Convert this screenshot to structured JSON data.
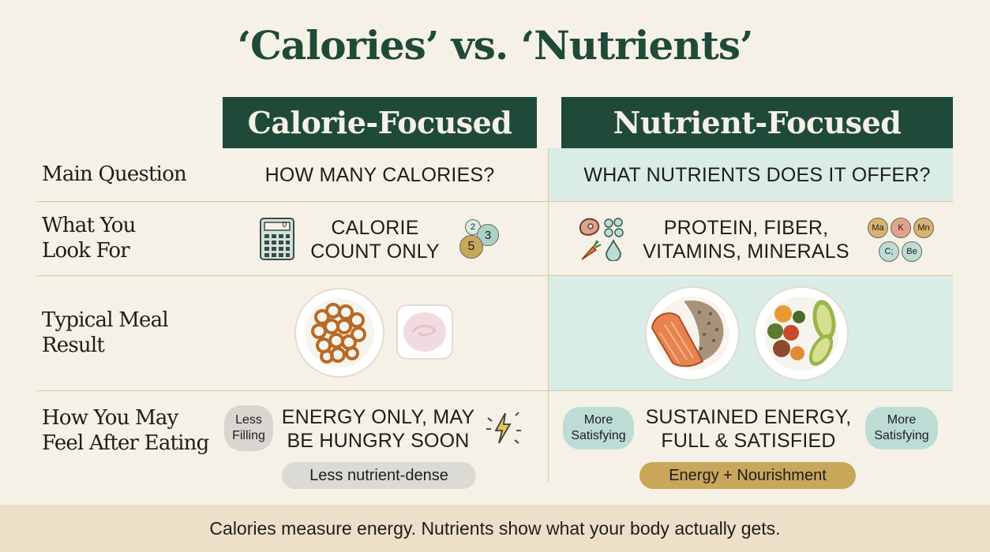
{
  "title": "‘Calories’ vs. ‘Nutrients’",
  "columns": {
    "left": "Calorie-Focused",
    "right": "Nutrient-Focused"
  },
  "rows": {
    "main_question": {
      "label": "Main Question",
      "left": "HOW MANY CALORIES?",
      "right": "WHAT NUTRIENTS DOES IT OFFER?"
    },
    "look_for": {
      "label_line1": "What You",
      "label_line2": "Look For",
      "left_line1": "CALORIE",
      "left_line2": "COUNT ONLY",
      "right_line1": "PROTEIN, FIBER,",
      "right_line2": "VITAMINS, MINERALS",
      "calorie_digits": [
        "2",
        "3",
        "5"
      ],
      "calculator_display": "0",
      "mineral_chips": [
        "Ma",
        "K",
        "Mn",
        "C;",
        "Be"
      ]
    },
    "meal": {
      "label_line1": "Typical Meal",
      "label_line2": "Result"
    },
    "feel": {
      "label_line1": "How You May",
      "label_line2": "Feel After Eating",
      "left_line1": "ENERGY ONLY, MAY",
      "left_line2": "BE HUNGRY SOON",
      "left_bubble_line1": "Less",
      "left_bubble_line2": "Filling",
      "left_pill": "Less nutrient-dense",
      "right_line1": "SUSTAINED ENERGY,",
      "right_line2": "FULL & SATISFIED",
      "right_bubble1_line1": "More",
      "right_bubble1_line2": "Satisfying",
      "right_bubble2_line1": "More",
      "right_bubble2_line2": "Satisfying",
      "right_pill": "Energy + Nourishment"
    }
  },
  "footer": "Calories measure energy. Nutrients show what your body actually gets.",
  "colors": {
    "background": "#f6f1e6",
    "header": "#1f4a3a",
    "tint": "#d9ece6",
    "gold": "#c9a75a",
    "footer": "#ece0c9"
  }
}
